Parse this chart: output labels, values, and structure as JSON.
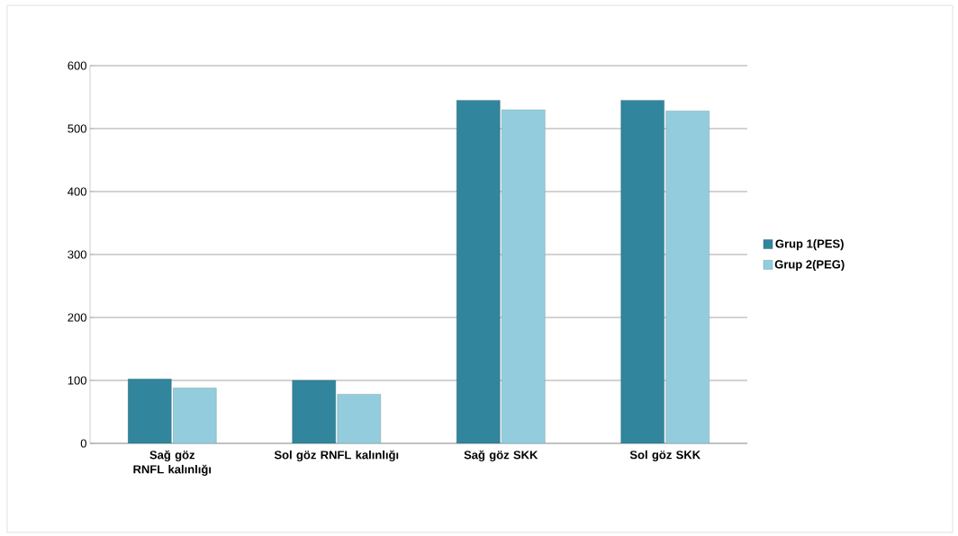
{
  "chart_data": {
    "type": "bar",
    "categories": [
      "Sağ göz RNFL kalınlığı",
      "Sol göz RNFL kalınlığı",
      "Sağ göz SKK",
      "Sol göz SKK"
    ],
    "series": [
      {
        "name": "Grup 1(PES)",
        "color": "#31859c",
        "values": [
          102,
          100,
          545,
          545
        ]
      },
      {
        "name": "Grup 2(PEG)",
        "color": "#93cddd",
        "values": [
          88,
          78,
          530,
          528
        ]
      }
    ],
    "ylim": [
      0,
      600
    ],
    "yticks": [
      0,
      100,
      200,
      300,
      400,
      500,
      600
    ],
    "grid": "y",
    "legend": "right"
  }
}
